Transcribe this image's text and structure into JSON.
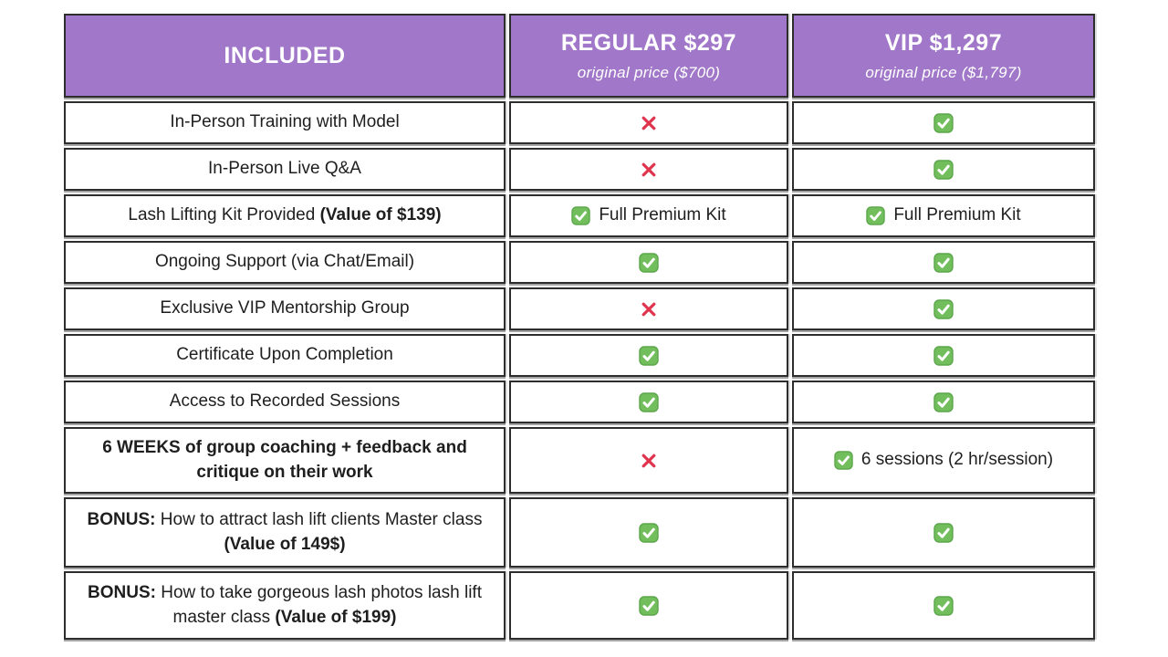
{
  "colors": {
    "header_bg": "#A178C9",
    "header_text": "#ffffff",
    "body_text": "#1e1e1e",
    "cell_border": "#2d2d2d",
    "check_fill": "#72BE5D",
    "check_border": "#5CA64C",
    "check_mark": "#ffffff",
    "cross_red": "#E0344E"
  },
  "icons": {
    "check": "check-icon",
    "cross": "cross-icon"
  },
  "table": {
    "header": {
      "included": "INCLUDED",
      "regular": {
        "title": "REGULAR $297",
        "subtitle": "original price ($700)"
      },
      "vip": {
        "title": "VIP $1,297",
        "subtitle": "original price ($1,797)"
      }
    },
    "rows": [
      {
        "feature_parts": [
          {
            "t": "In-Person Training with Model",
            "b": false
          }
        ],
        "regular": {
          "icon": "cross",
          "label": ""
        },
        "vip": {
          "icon": "check",
          "label": ""
        }
      },
      {
        "feature_parts": [
          {
            "t": "In-Person Live Q&A",
            "b": false
          }
        ],
        "regular": {
          "icon": "cross",
          "label": ""
        },
        "vip": {
          "icon": "check",
          "label": ""
        }
      },
      {
        "feature_parts": [
          {
            "t": "Lash Lifting Kit Provided ",
            "b": false
          },
          {
            "t": "(Value of $139)",
            "b": true
          }
        ],
        "regular": {
          "icon": "check",
          "label": "Full Premium Kit"
        },
        "vip": {
          "icon": "check",
          "label": "Full Premium Kit"
        }
      },
      {
        "feature_parts": [
          {
            "t": "Ongoing Support (via Chat/Email)",
            "b": false
          }
        ],
        "regular": {
          "icon": "check",
          "label": ""
        },
        "vip": {
          "icon": "check",
          "label": ""
        }
      },
      {
        "feature_parts": [
          {
            "t": "Exclusive VIP Mentorship Group",
            "b": false
          }
        ],
        "regular": {
          "icon": "cross",
          "label": ""
        },
        "vip": {
          "icon": "check",
          "label": ""
        }
      },
      {
        "feature_parts": [
          {
            "t": "Certificate Upon Completion",
            "b": false
          }
        ],
        "regular": {
          "icon": "check",
          "label": ""
        },
        "vip": {
          "icon": "check",
          "label": ""
        }
      },
      {
        "feature_parts": [
          {
            "t": "Access to Recorded Sessions",
            "b": false
          }
        ],
        "regular": {
          "icon": "check",
          "label": ""
        },
        "vip": {
          "icon": "check",
          "label": ""
        }
      },
      {
        "feature_parts": [
          {
            "t": "6 WEEKS of group coaching + feedback and critique on their work",
            "b": true
          }
        ],
        "regular": {
          "icon": "cross",
          "label": ""
        },
        "vip": {
          "icon": "check",
          "label": "6 sessions (2 hr/session)"
        }
      },
      {
        "feature_parts": [
          {
            "t": "BONUS:",
            "b": true
          },
          {
            "t": " How to attract lash lift clients Master class ",
            "b": false
          },
          {
            "t": "(Value of 149$)",
            "b": true
          }
        ],
        "regular": {
          "icon": "check",
          "label": ""
        },
        "vip": {
          "icon": "check",
          "label": ""
        }
      },
      {
        "feature_parts": [
          {
            "t": "BONUS:",
            "b": true
          },
          {
            "t": " How to take gorgeous lash photos lash lift master class ",
            "b": false
          },
          {
            "t": "(Value of $199)",
            "b": true
          }
        ],
        "regular": {
          "icon": "check",
          "label": ""
        },
        "vip": {
          "icon": "check",
          "label": ""
        }
      }
    ]
  },
  "chart_data": {
    "type": "table",
    "title": "Lash lift course pricing comparison",
    "columns": [
      "INCLUDED",
      "REGULAR $297 — original price ($700)",
      "VIP $1,297 — original price ($1,797)"
    ],
    "rows": [
      [
        "In-Person Training with Model",
        "no",
        "yes"
      ],
      [
        "In-Person Live Q&A",
        "no",
        "yes"
      ],
      [
        "Lash Lifting Kit Provided (Value of $139)",
        "yes — Full Premium Kit",
        "yes — Full Premium Kit"
      ],
      [
        "Ongoing Support (via Chat/Email)",
        "yes",
        "yes"
      ],
      [
        "Exclusive VIP Mentorship Group",
        "no",
        "yes"
      ],
      [
        "Certificate Upon Completion",
        "yes",
        "yes"
      ],
      [
        "Access to Recorded Sessions",
        "yes",
        "yes"
      ],
      [
        "6 WEEKS of group coaching + feedback and critique on their work",
        "no",
        "yes — 6 sessions (2 hr/session)"
      ],
      [
        "BONUS: How to attract lash lift clients Master class (Value of 149$)",
        "yes",
        "yes"
      ],
      [
        "BONUS: How to take gorgeous lash photos lash lift master class (Value of $199)",
        "yes",
        "yes"
      ]
    ]
  }
}
